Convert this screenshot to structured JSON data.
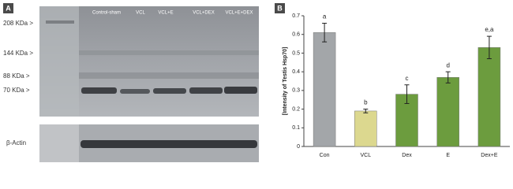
{
  "panel_a": {
    "label": "A",
    "lanes": [
      "Control-sham",
      "VCL",
      "VCL+E",
      "VCL+DEX",
      "VCL+E+DEX"
    ],
    "markers": [
      "208 KDa >",
      "144 KDa >",
      "88 KDa >",
      "70 KDa >"
    ],
    "loading_control": "β-Actin"
  },
  "chart_data": {
    "type": "bar",
    "panel_label": "B",
    "ylabel": "[Intensity of Testis Hsp70]",
    "categories": [
      "Con",
      "VCL",
      "Dex",
      "E",
      "Dex+E"
    ],
    "values": [
      0.61,
      0.19,
      0.28,
      0.37,
      0.53
    ],
    "errors": [
      0.05,
      0.01,
      0.05,
      0.03,
      0.06
    ],
    "annotations": [
      "a",
      "b",
      "c",
      "d",
      "e,a"
    ],
    "colors": [
      "#a3a6a9",
      "#dcd88f",
      "#6c9c3e",
      "#6c9c3e",
      "#6c9c3e"
    ],
    "ylim": [
      0,
      0.7
    ],
    "yticks": [
      0,
      0.1,
      0.2,
      0.3,
      0.4,
      0.5,
      0.6,
      0.7
    ]
  }
}
